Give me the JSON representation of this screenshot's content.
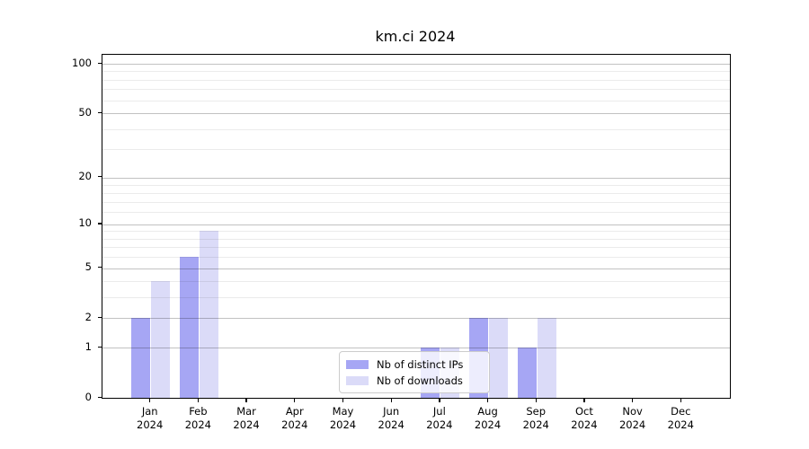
{
  "title": "km.ci 2024",
  "chart_data": {
    "type": "bar",
    "title": "km.ci 2024",
    "categories": [
      "Jan",
      "Feb",
      "Mar",
      "Apr",
      "May",
      "Jun",
      "Jul",
      "Aug",
      "Sep",
      "Oct",
      "Nov",
      "Dec"
    ],
    "year": "2024",
    "series": [
      {
        "name": "Nb of distinct IPs",
        "color": "#a6a6f4",
        "values": [
          2,
          6,
          0,
          0,
          0,
          0,
          1,
          2,
          1,
          0,
          0,
          0
        ]
      },
      {
        "name": "Nb of downloads",
        "color": "#dbdbf8",
        "values": [
          4,
          9,
          0,
          0,
          0,
          0,
          1,
          2,
          2,
          0,
          0,
          0
        ]
      }
    ],
    "xlabel": "",
    "ylabel": "",
    "yscale": "log1p",
    "ylim": [
      0,
      113
    ],
    "yticks": [
      0,
      1,
      2,
      5,
      10,
      20,
      50,
      100
    ],
    "major_gridlines": [
      1,
      2,
      5,
      10,
      20,
      50,
      100
    ],
    "minor_gridlines": [
      3,
      4,
      6,
      7,
      8,
      9,
      12,
      14,
      16,
      18,
      30,
      40,
      60,
      70,
      80,
      90
    ],
    "grid": true,
    "legend_position": "lower center",
    "colors": {
      "major_grid": "#c2c2c2",
      "minor_grid": "#ebebeb",
      "spine": "#000000",
      "background": "#ffffff"
    }
  }
}
